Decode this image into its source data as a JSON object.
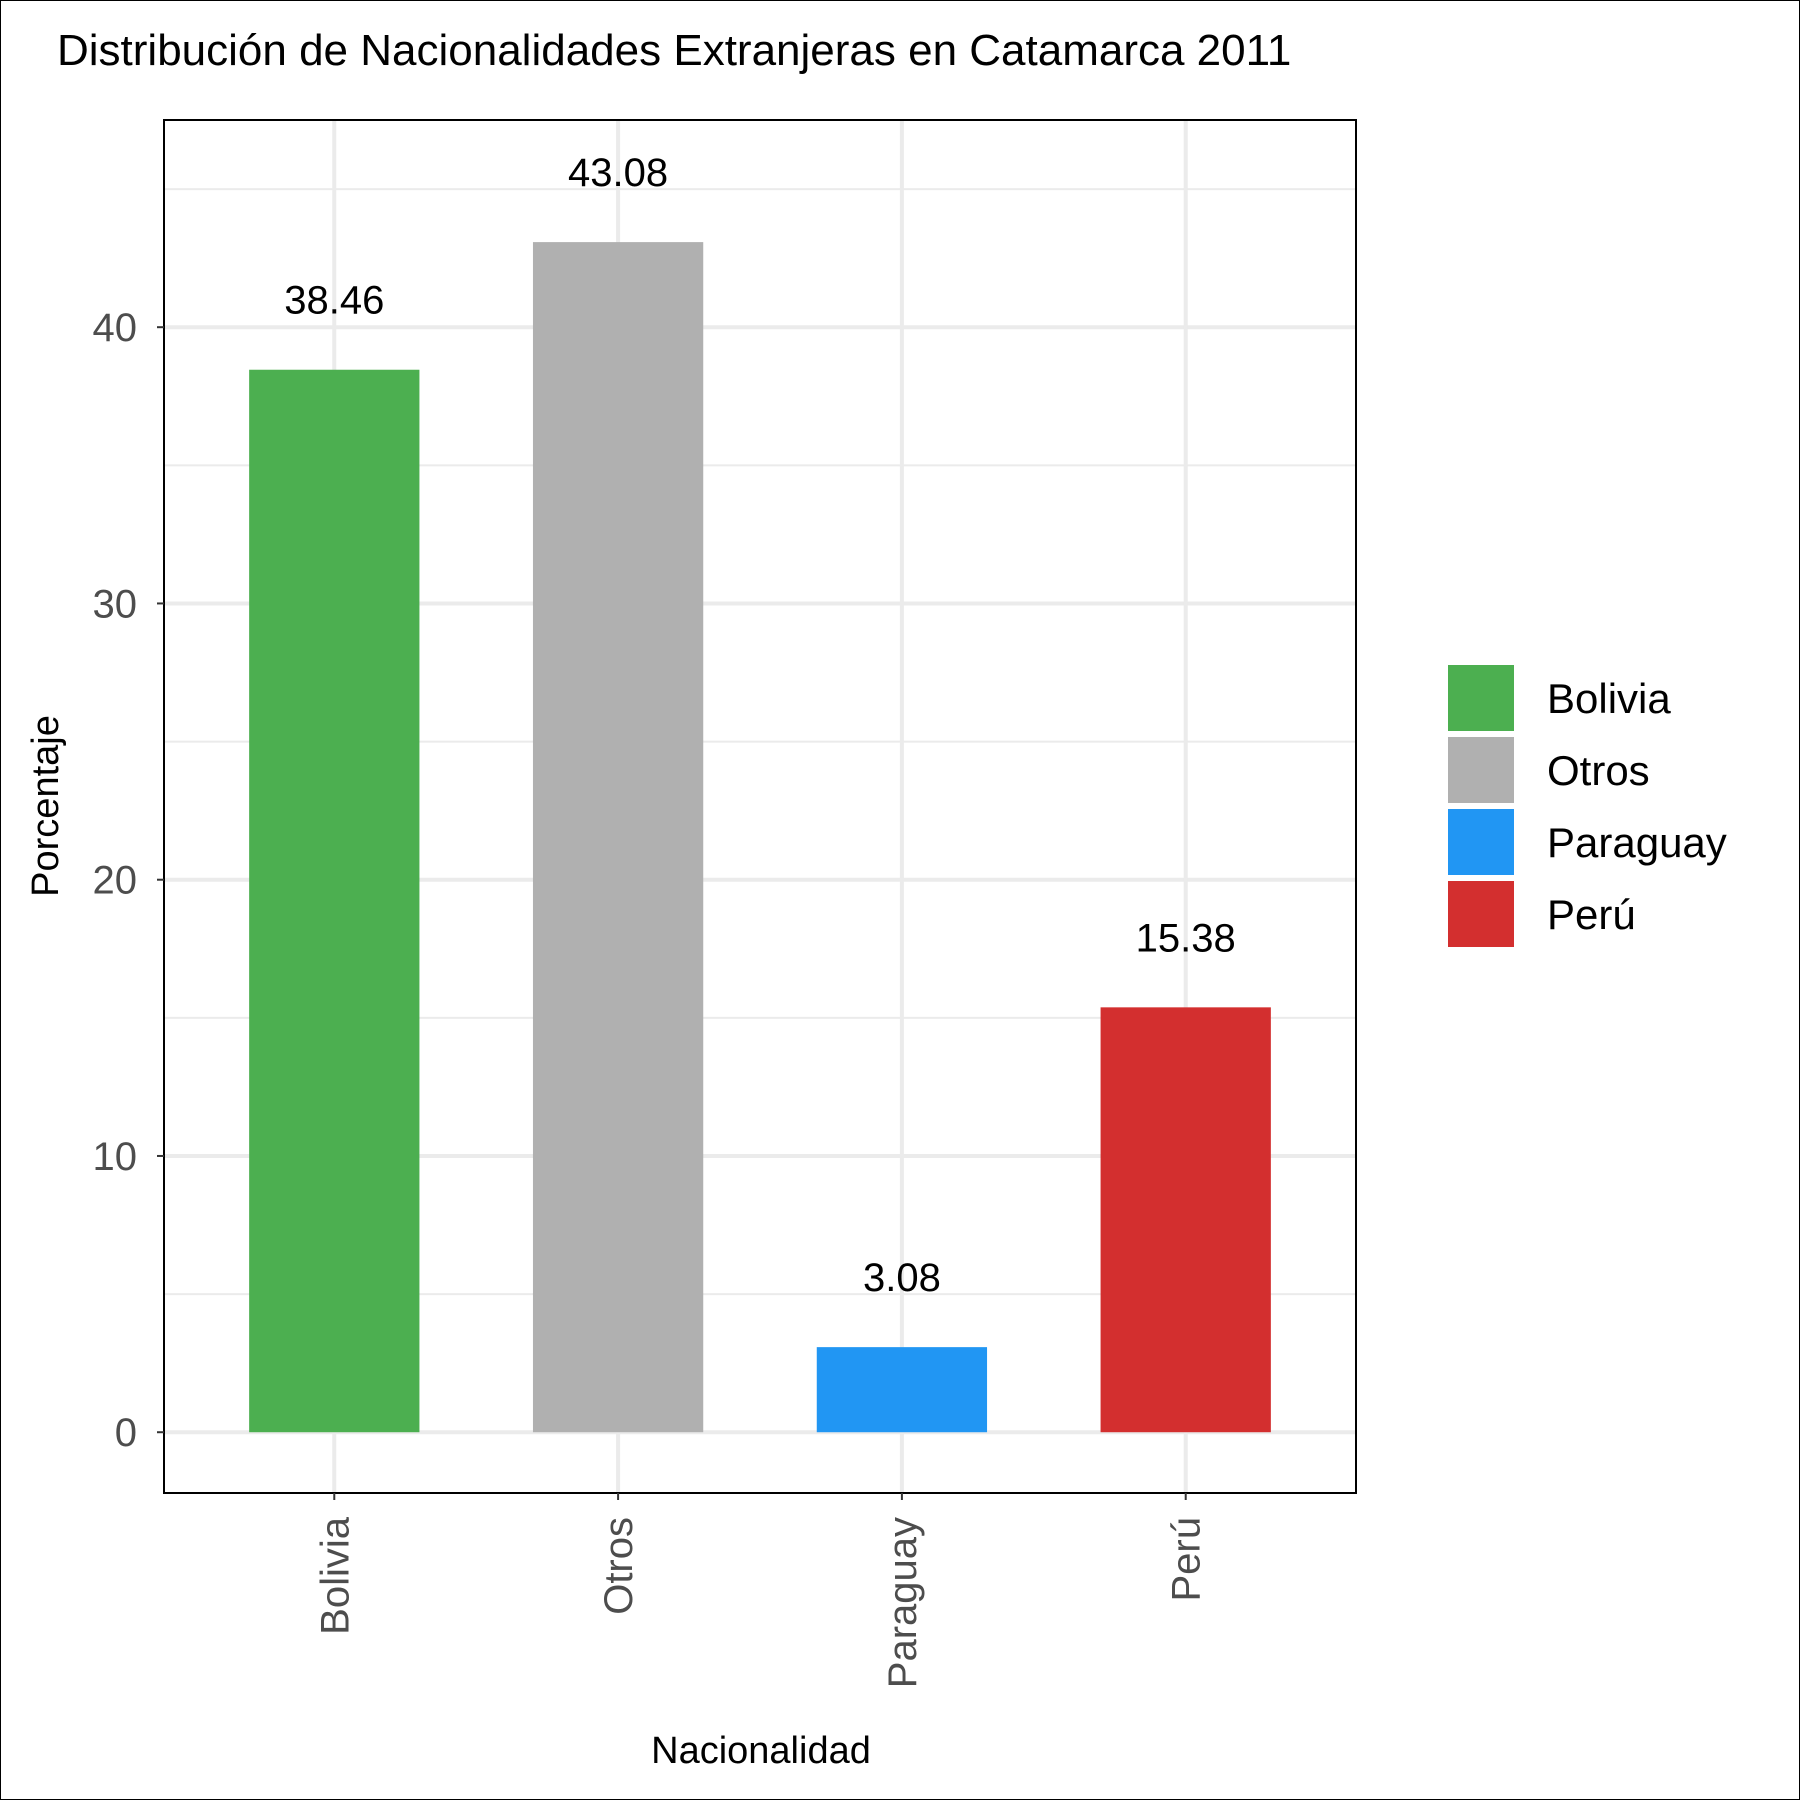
{
  "chart_data": {
    "type": "bar",
    "title": "Distribución de Nacionalidades Extranjeras en Catamarca 2011",
    "xlabel": "Nacionalidad",
    "ylabel": "Porcentaje",
    "categories": [
      "Bolivia",
      "Otros",
      "Paraguay",
      "Perú"
    ],
    "values": [
      38.46,
      43.08,
      3.08,
      15.38
    ],
    "data_labels": [
      "38.46",
      "43.08",
      "3.08",
      "15.38"
    ],
    "colors": [
      "#4caf50",
      "#b0b0b0",
      "#2196f3",
      "#d32f2f"
    ],
    "ylim": [
      -2.2,
      47.5
    ],
    "yticks": [
      0,
      10,
      20,
      30,
      40
    ],
    "ytick_labels": [
      "0",
      "10",
      "20",
      "30",
      "40"
    ],
    "xtick_rotation": "vertical",
    "grid": true,
    "legend_position": "right",
    "legend": {
      "entries": [
        {
          "label": "Bolivia",
          "color": "#4caf50"
        },
        {
          "label": "Otros",
          "color": "#b0b0b0"
        },
        {
          "label": "Paraguay",
          "color": "#2196f3"
        },
        {
          "label": "Perú",
          "color": "#d32f2f"
        }
      ]
    }
  }
}
